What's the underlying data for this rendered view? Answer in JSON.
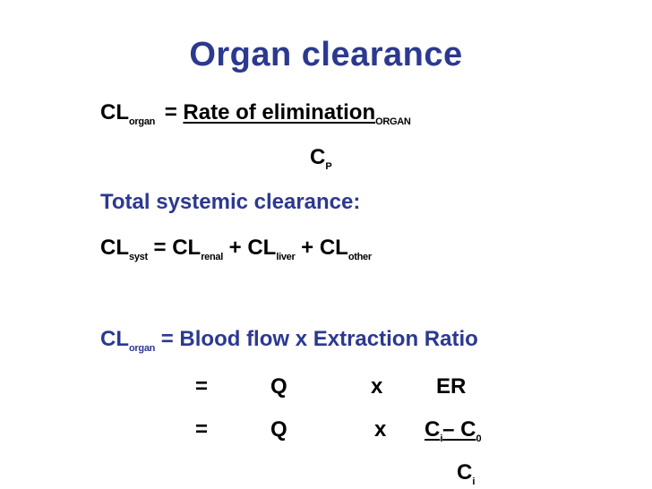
{
  "title": "Organ clearance",
  "eq1": {
    "cl": "CL",
    "organ_sub": "organ",
    "equals": "=",
    "numerator": "Rate of elimination",
    "numerator_sub": "ORGAN",
    "denominator": "C",
    "denominator_sub": "P"
  },
  "total_heading": "Total systemic clearance:",
  "eq2": {
    "cl1": "CL",
    "syst_sub": "syst",
    "equals": "=",
    "cl2": "CL",
    "renal_sub": "renal",
    "plus1": "+",
    "cl3": "CL",
    "liver_sub": "liver",
    "plus2": "+",
    "cl4": "CL",
    "other_sub": "other"
  },
  "eq3": {
    "cl": "CL",
    "organ_sub": "organ",
    "rhs": "= Blood flow x Extraction Ratio"
  },
  "eq4": {
    "equals": "=",
    "q": "Q",
    "x": "x",
    "er": "ER"
  },
  "eq5": {
    "equals": "=",
    "q": "Q",
    "x": "x",
    "ci": "C",
    "ci_sub": "i",
    "minus": "– C",
    "c0_sub": "0",
    "denom": "C",
    "denom_sub": "i"
  },
  "colors": {
    "heading_blue": "#2b3990",
    "text": "#000000"
  }
}
